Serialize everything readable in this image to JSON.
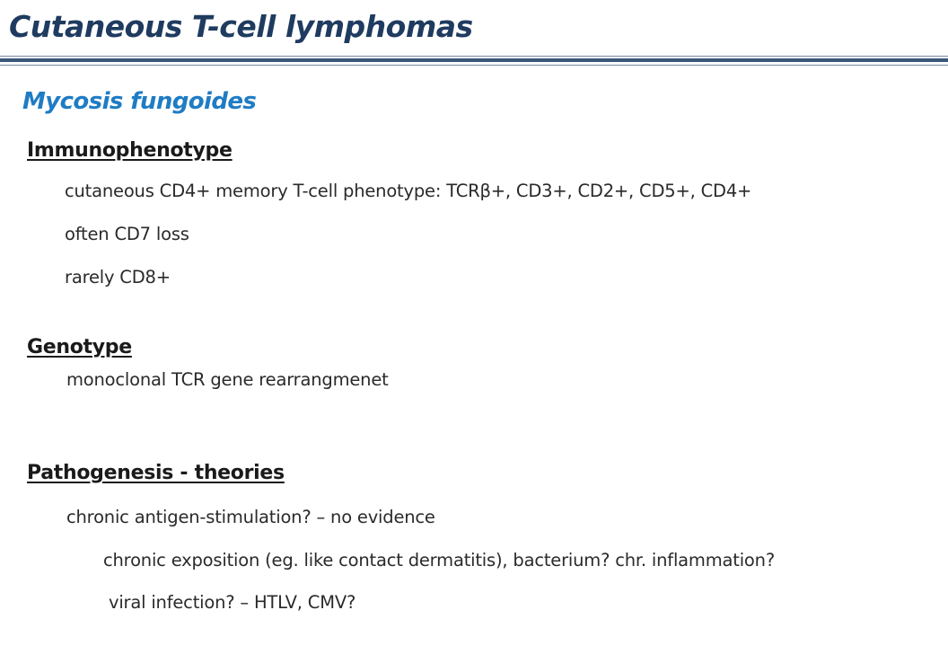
{
  "slide": {
    "title": "Cutaneous T-cell lymphomas",
    "subtitle": "Mycosis fungoides"
  },
  "sections": {
    "immunophenotype": {
      "heading": "Immunophenotype",
      "lines": [
        "cutaneous CD4+ memory T-cell phenotype: TCRβ+, CD3+, CD2+, CD5+, CD4+",
        "often CD7 loss",
        "rarely CD8+"
      ]
    },
    "genotype": {
      "heading": "Genotype",
      "lines": [
        "monoclonal TCR gene rearrangmenet"
      ]
    },
    "pathogenesis": {
      "heading": "Pathogenesis - theories",
      "lines": [
        "chronic antigen-stimulation? – no evidence",
        "chronic exposition (eg. like contact dermatitis), bacterium? chr. inflammation?",
        "viral infection? – HTLV, CMV?"
      ]
    }
  },
  "colors": {
    "title": "#1f3b60",
    "subtitle": "#1f7cc4",
    "rule": "#3b5878",
    "body_text": "#2a2a2a"
  }
}
